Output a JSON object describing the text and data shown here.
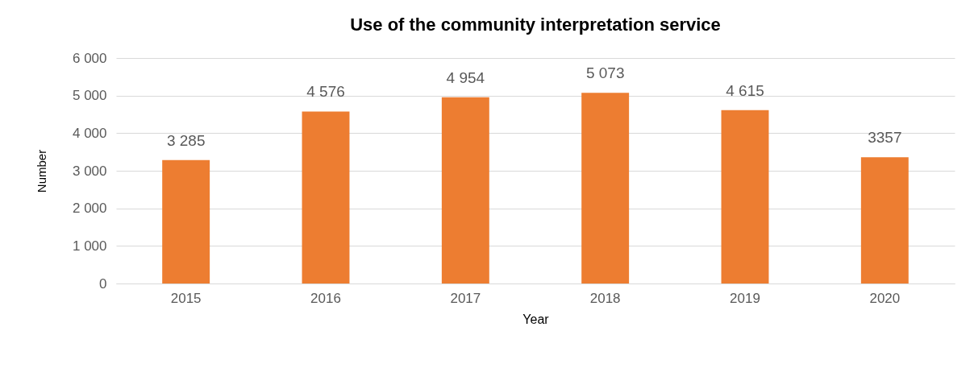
{
  "chart_data": {
    "type": "bar",
    "title": "Use of the community interpretation service",
    "xlabel": "Year",
    "ylabel": "Number",
    "categories": [
      "2015",
      "2016",
      "2017",
      "2018",
      "2019",
      "2020"
    ],
    "values": [
      3285,
      4576,
      4954,
      5073,
      4615,
      3357
    ],
    "value_labels": [
      "3 285",
      "4 576",
      "4 954",
      "5 073",
      "4 615",
      "3357"
    ],
    "color": "#ed7d31",
    "ylim": [
      0,
      6000
    ],
    "yticks": [
      0,
      {
        "value": 1000,
        "label": "1 000"
      },
      {
        "value": 2000,
        "label": "2 000"
      },
      {
        "value": 3000,
        "label": "3 000"
      },
      {
        "value": 4000,
        "label": "4 000"
      },
      {
        "value": 5000,
        "label": "5 000"
      },
      {
        "value": 6000,
        "label": "6 000"
      }
    ],
    "grid": "y"
  }
}
